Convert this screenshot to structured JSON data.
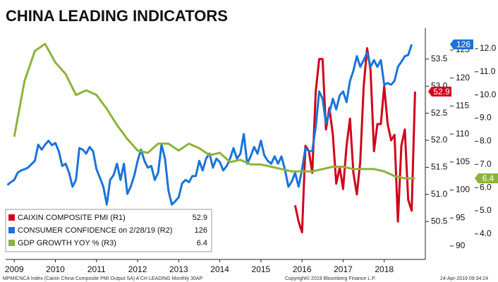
{
  "chart_data": {
    "type": "line",
    "title": "CHINA LEADING INDICATORS",
    "footer": [
      "MPMICNCA Index (Caixin China Composite PMI Output SA) A CH LEADING  Monthly 30AP",
      "Copyright© 2019 Bloomberg Finance L.P.",
      "24-Apr-2019 09:34:24"
    ],
    "xlim": [
      2009.29,
      2019.5
    ],
    "xticks": [
      {
        "value": 2009.5,
        "label": "2009"
      },
      {
        "value": 2010.5,
        "label": "2010"
      },
      {
        "value": 2011.5,
        "label": "2011"
      },
      {
        "value": 2012.5,
        "label": "2012"
      },
      {
        "value": 2013.5,
        "label": "2013"
      },
      {
        "value": 2014.5,
        "label": "2014"
      },
      {
        "value": 2015.5,
        "label": "2015"
      },
      {
        "value": 2016.5,
        "label": "2016"
      },
      {
        "value": 2017.5,
        "label": "2017"
      },
      {
        "value": 2018.5,
        "label": "2018"
      }
    ],
    "ylim": [
      49.8,
      54.07
    ],
    "yticks": [
      50.5,
      {
        "value": 51,
        "label": "51.0"
      },
      51.5,
      {
        "value": 52,
        "label": "52.0"
      },
      52.5,
      {
        "value": 53,
        "label": "53.0"
      },
      53.5
    ],
    "y2lim": [
      87.6,
      128.9
    ],
    "y2ticks": [
      90,
      95,
      100,
      105,
      110,
      115,
      120,
      125
    ],
    "y3lim": [
      2.9,
      12.88
    ],
    "y3ticks": [
      {
        "value": 4,
        "label": "4.0"
      },
      {
        "value": 5,
        "label": "5.0"
      },
      {
        "value": 6,
        "label": "6.0"
      },
      {
        "value": 7,
        "label": "7.0"
      },
      {
        "value": 8,
        "label": "8.0"
      },
      {
        "value": 9,
        "label": "9.0"
      },
      {
        "value": 10,
        "label": "10.0"
      },
      {
        "value": 11,
        "label": "11.0"
      },
      {
        "value": 12,
        "label": "12.0"
      }
    ],
    "series": [
      {
        "name": "CAIXIN COMPOSITE PMI (R1)",
        "color": "#d0021b",
        "axis": "y",
        "x": [
          2016.333,
          2016.417,
          2016.5,
          2016.583,
          2016.667,
          2016.75,
          2016.833,
          2016.917,
          2017.0,
          2017.083,
          2017.167,
          2017.25,
          2017.333,
          2017.417,
          2017.5,
          2017.583,
          2017.667,
          2017.75,
          2017.833,
          2017.917,
          2018.0,
          2018.083,
          2018.167,
          2018.25,
          2018.333,
          2018.417,
          2018.5,
          2018.583,
          2018.667,
          2018.75,
          2018.833,
          2018.917,
          2019.0,
          2019.083,
          2019.167,
          2019.25
        ],
        "values": [
          50.8,
          50.5,
          50.3,
          51.9,
          51.8,
          51.4,
          52.9,
          53.5,
          53.5,
          52.2,
          52.6,
          52.1,
          51.2,
          51.5,
          51.1,
          51.9,
          52.4,
          51.4,
          51.0,
          51.6,
          53.0,
          53.7,
          53.3,
          51.8,
          52.3,
          52.3,
          53.0,
          52.3,
          52.0,
          52.1,
          50.5,
          51.9,
          52.2,
          50.9,
          50.7,
          52.9
        ]
      },
      {
        "name": "CONSUMER CONFIDENCE on 2/28/19 (R2)",
        "color": "#1a73d9",
        "axis": "y2",
        "x": [
          2009.333,
          2009.417,
          2009.5,
          2009.583,
          2009.667,
          2009.75,
          2009.833,
          2009.917,
          2010.0,
          2010.083,
          2010.167,
          2010.25,
          2010.333,
          2010.417,
          2010.5,
          2010.583,
          2010.667,
          2010.75,
          2010.833,
          2010.917,
          2011.0,
          2011.083,
          2011.167,
          2011.25,
          2011.333,
          2011.417,
          2011.5,
          2011.583,
          2011.667,
          2011.75,
          2011.833,
          2011.917,
          2012.0,
          2012.083,
          2012.167,
          2012.25,
          2012.333,
          2012.417,
          2012.5,
          2012.583,
          2012.667,
          2012.75,
          2012.833,
          2012.917,
          2013.0,
          2013.083,
          2013.167,
          2013.25,
          2013.333,
          2013.417,
          2013.5,
          2013.583,
          2013.667,
          2013.75,
          2013.833,
          2013.917,
          2014.0,
          2014.083,
          2014.167,
          2014.25,
          2014.333,
          2014.417,
          2014.5,
          2014.583,
          2014.667,
          2014.75,
          2014.833,
          2014.917,
          2015.0,
          2015.083,
          2015.167,
          2015.25,
          2015.333,
          2015.417,
          2015.5,
          2015.583,
          2015.667,
          2015.75,
          2015.833,
          2015.917,
          2016.0,
          2016.083,
          2016.167,
          2016.25,
          2016.333,
          2016.417,
          2016.5,
          2016.583,
          2016.667,
          2016.75,
          2016.833,
          2016.917,
          2017.0,
          2017.083,
          2017.167,
          2017.25,
          2017.333,
          2017.417,
          2017.5,
          2017.583,
          2017.667,
          2017.75,
          2017.833,
          2017.917,
          2018.0,
          2018.083,
          2018.167,
          2018.25,
          2018.333,
          2018.417,
          2018.5,
          2018.583,
          2018.667,
          2018.75,
          2018.833,
          2018.917,
          2019.0,
          2019.083,
          2019.167
        ],
        "values": [
          100.9,
          101.4,
          101.8,
          103.1,
          103.5,
          103.7,
          104.0,
          104.6,
          105.2,
          108.1,
          107.2,
          108.1,
          108.8,
          108.0,
          108.4,
          106.9,
          104.3,
          104.7,
          103.1,
          100.6,
          101.8,
          107.5,
          107.2,
          106.5,
          107.7,
          106.9,
          103.7,
          102.2,
          100.6,
          97.4,
          101.8,
          102.7,
          104.7,
          101.8,
          104.7,
          99.3,
          100.6,
          102.5,
          105.2,
          107.2,
          105.2,
          104.0,
          104.3,
          101.8,
          103.1,
          108.1,
          105.6,
          99.9,
          97.4,
          98.0,
          98.7,
          101.2,
          101.8,
          101.4,
          102.5,
          102.5,
          105.2,
          103.5,
          105.6,
          106.5,
          104.0,
          105.6,
          105.0,
          103.5,
          104.3,
          105.6,
          107.5,
          105.6,
          106.5,
          110.0,
          104.7,
          106.0,
          107.7,
          106.5,
          108.8,
          106.2,
          105.2,
          104.7,
          106.0,
          104.7,
          106.0,
          103.7,
          100.6,
          101.5,
          103.1,
          100.6,
          103.7,
          107.5,
          106.9,
          107.0,
          111.3,
          117.6,
          116.3,
          111.9,
          113.8,
          116.3,
          114.4,
          116.9,
          117.6,
          115.7,
          119.5,
          121.3,
          123.9,
          122.0,
          123.2,
          124.5,
          122.0,
          123.2,
          122.0,
          123.2,
          118.8,
          119.1,
          118.8,
          119.5,
          122.0,
          122.9,
          123.9,
          124.1,
          126
        ]
      },
      {
        "name": "GDP GROWTH YOY % (R3)",
        "color": "#8db33a",
        "axis": "y3",
        "x": [
          2009.5,
          2009.75,
          2010.0,
          2010.25,
          2010.5,
          2010.75,
          2011.0,
          2011.25,
          2011.5,
          2011.75,
          2012.0,
          2012.25,
          2012.5,
          2012.75,
          2013.0,
          2013.25,
          2013.5,
          2013.75,
          2014.0,
          2014.25,
          2014.5,
          2014.75,
          2015.0,
          2015.25,
          2015.5,
          2015.75,
          2016.0,
          2016.25,
          2016.5,
          2016.75,
          2017.0,
          2017.25,
          2017.5,
          2017.75,
          2018.0,
          2018.25,
          2018.5,
          2018.75,
          2019.0,
          2019.25
        ],
        "values": [
          8.2,
          10.6,
          11.9,
          12.2,
          11.4,
          10.9,
          10.0,
          10.2,
          10.0,
          9.4,
          8.7,
          8.1,
          7.6,
          7.5,
          7.9,
          7.9,
          7.6,
          7.9,
          7.7,
          7.4,
          7.5,
          7.1,
          7.2,
          7.0,
          7.0,
          6.9,
          6.8,
          6.7,
          6.7,
          6.7,
          6.8,
          6.9,
          6.9,
          6.8,
          6.8,
          6.8,
          6.7,
          6.5,
          6.4,
          6.4
        ]
      }
    ]
  }
}
